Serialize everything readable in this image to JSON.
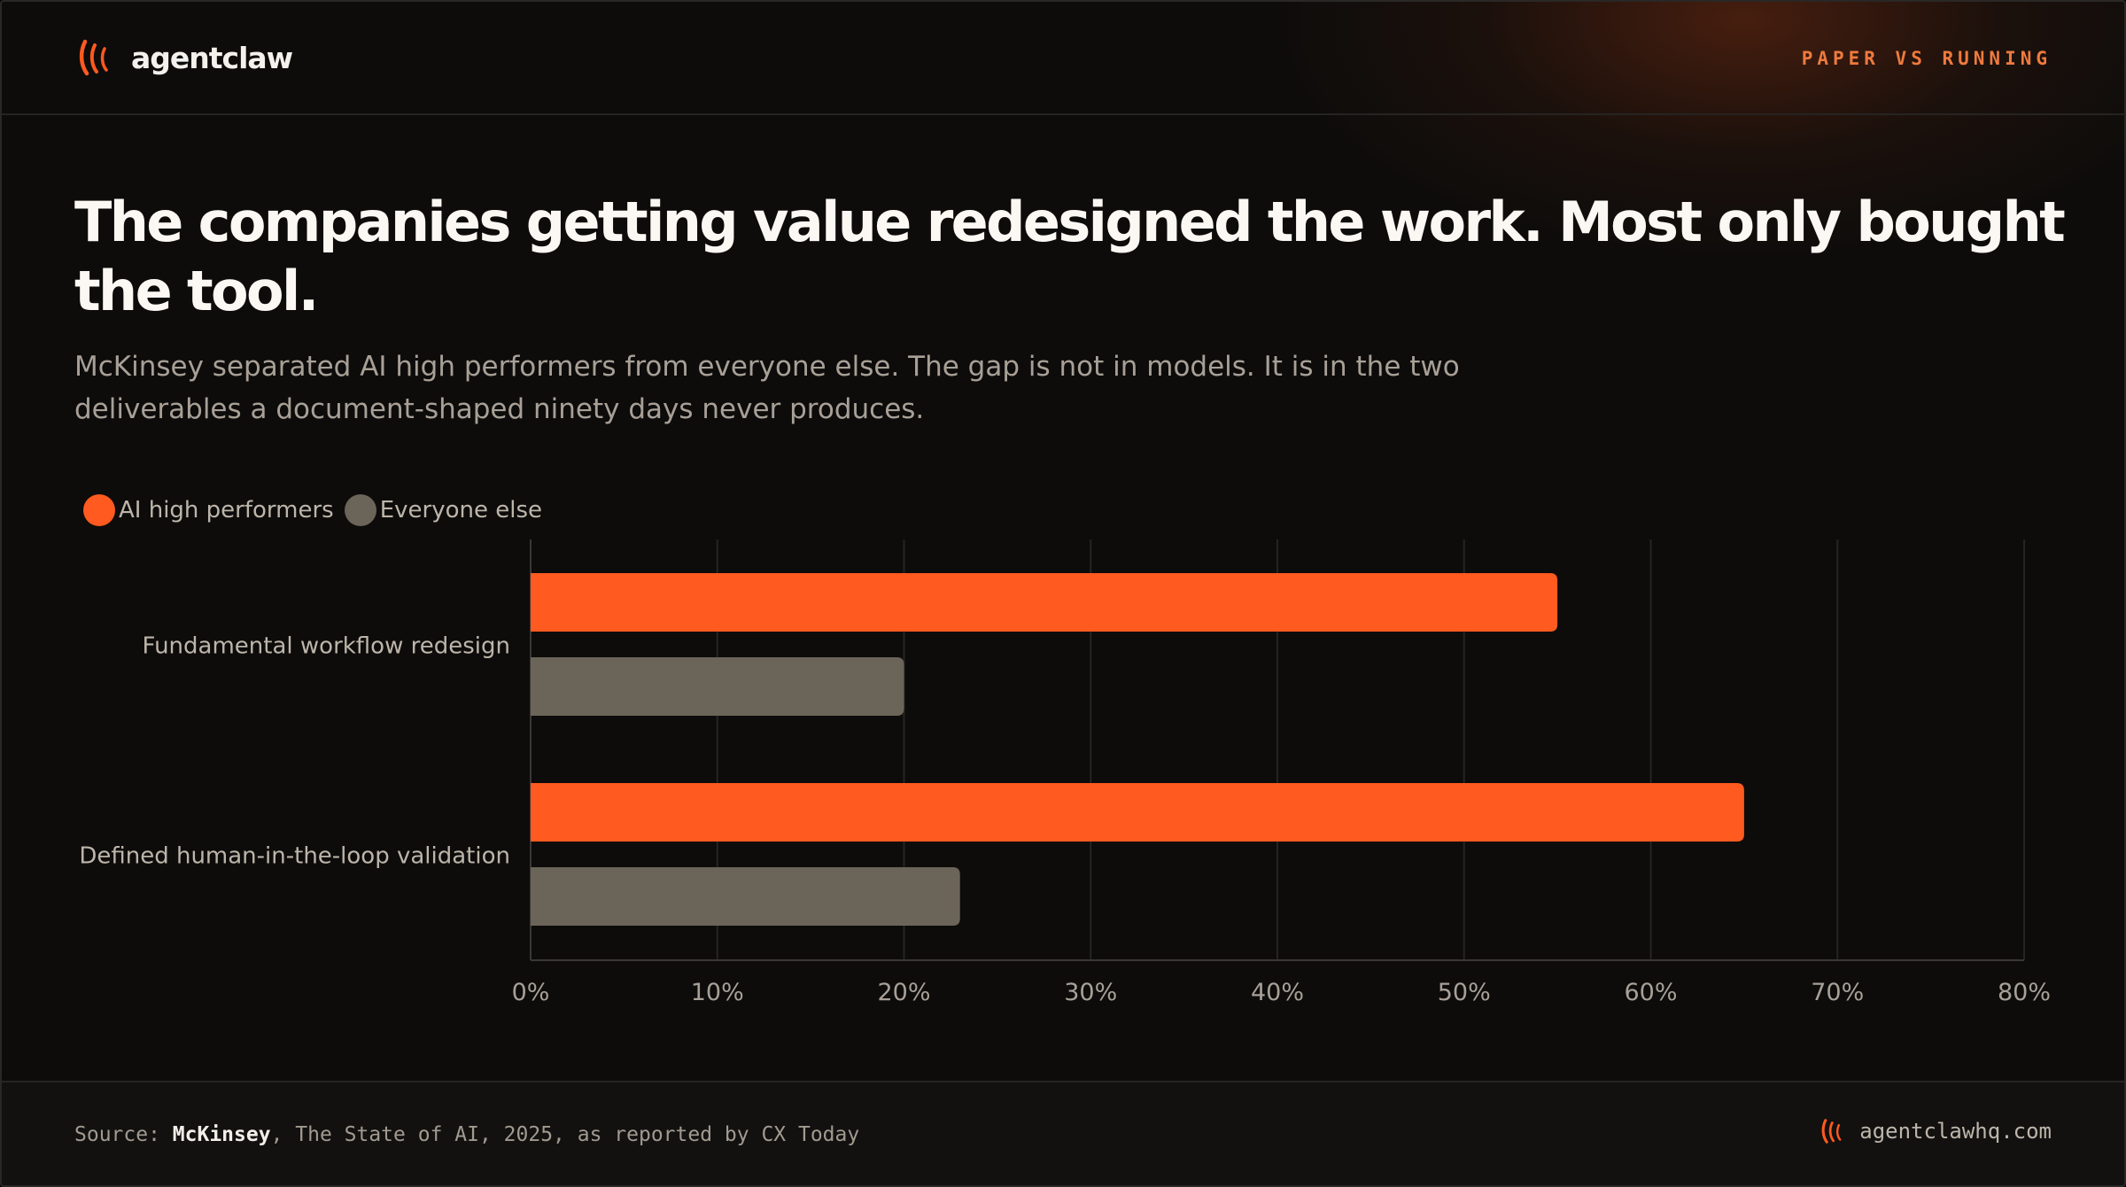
{
  "brand": {
    "name": "agentclaw",
    "tag": "PAPER VS RUNNING"
  },
  "headline": "The companies getting value redesigned the work. Most only bought the tool.",
  "subhead": "McKinsey separated AI high performers from everyone else. The gap is not in models. It is in the two deliverables a document-shaped ninety days never produces.",
  "colors": {
    "accent": "#ff5a1f",
    "muted": "#6b6458",
    "background": "#0d0c0b"
  },
  "chart_data": {
    "type": "bar",
    "orientation": "horizontal",
    "categories": [
      "Fundamental workflow redesign",
      "Defined human-in-the-loop validation"
    ],
    "series": [
      {
        "name": "AI high performers",
        "values": [
          55,
          65
        ],
        "color": "#ff5a1f"
      },
      {
        "name": "Everyone else",
        "values": [
          20,
          23
        ],
        "color": "#6b6458"
      }
    ],
    "xlim": [
      0,
      80
    ],
    "xticks": [
      0,
      10,
      20,
      30,
      40,
      50,
      60,
      70,
      80
    ],
    "tick_format": "{v}%",
    "grid": true,
    "legend": "top-left"
  },
  "footer": {
    "source_prefix": "Source: ",
    "source_org": "McKinsey",
    "source_rest": ", The State of AI, 2025, as reported by CX Today",
    "site": "agentclawhq.com"
  }
}
